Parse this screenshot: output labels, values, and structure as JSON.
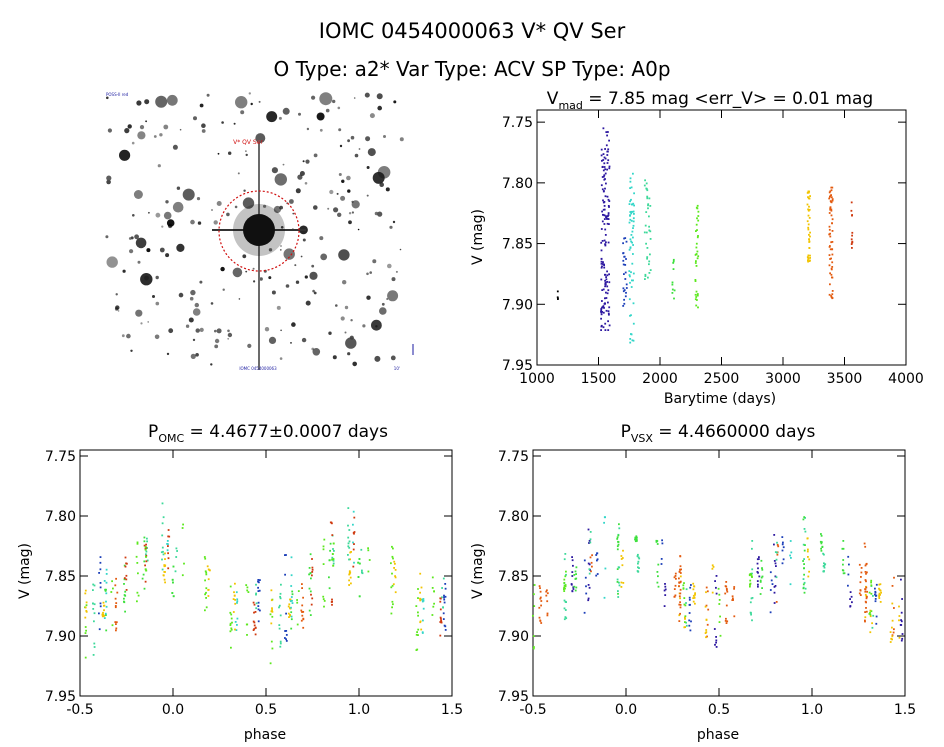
{
  "header": {
    "title": "IOMC 0454000063    V* QV Ser",
    "subtitle": "O Type: a2*  Var Type: ACV  SP Type: A0p"
  },
  "finder": {
    "star_label": "V* QV Ser",
    "corner_top_left": "POSS-II red",
    "corner_bottom_center": "IOMC 0454000063",
    "corner_bottom_right": "10'"
  },
  "chart_data": [
    {
      "id": "lightcurve",
      "type": "scatter",
      "title": "V_mad = 7.85 mag <err_V> = 0.01 mag",
      "title_parts": [
        "V",
        "mad",
        " = 7.85 mag <err_V> = 0.01 mag"
      ],
      "xlabel": "Barytime (days)",
      "ylabel": "V (mag)",
      "xlim": [
        1000,
        4000
      ],
      "ylim": [
        7.95,
        7.74
      ],
      "y_inverted": true,
      "xticks": [
        1000,
        1500,
        2000,
        2500,
        3000,
        3500,
        4000
      ],
      "yticks": [
        7.75,
        7.8,
        7.85,
        7.9,
        7.95
      ],
      "clusters": [
        {
          "x": 1170,
          "width": 4,
          "ymin": 7.888,
          "ymax": 7.897,
          "n": 4,
          "color": "#000000"
        },
        {
          "x": 1555,
          "width": 70,
          "ymin": 7.755,
          "ymax": 7.922,
          "n": 150,
          "color": "#2d18a0"
        },
        {
          "x": 1715,
          "width": 30,
          "ymin": 7.845,
          "ymax": 7.905,
          "n": 25,
          "color": "#1c3fb8"
        },
        {
          "x": 1770,
          "width": 40,
          "ymin": 7.792,
          "ymax": 7.935,
          "n": 60,
          "color": "#33d6c8"
        },
        {
          "x": 1900,
          "width": 50,
          "ymin": 7.797,
          "ymax": 7.885,
          "n": 35,
          "color": "#3dd99a"
        },
        {
          "x": 2110,
          "width": 20,
          "ymin": 7.862,
          "ymax": 7.9,
          "n": 10,
          "color": "#3de03d"
        },
        {
          "x": 2300,
          "width": 25,
          "ymin": 7.818,
          "ymax": 7.905,
          "n": 35,
          "color": "#5ce81e"
        },
        {
          "x": 3210,
          "width": 25,
          "ymin": 7.804,
          "ymax": 7.866,
          "n": 40,
          "color": "#f2c400"
        },
        {
          "x": 3390,
          "width": 30,
          "ymin": 7.803,
          "ymax": 7.897,
          "n": 60,
          "color": "#e35b10"
        },
        {
          "x": 3560,
          "width": 8,
          "ymin": 7.812,
          "ymax": 7.858,
          "n": 12,
          "color": "#cf3a10"
        }
      ]
    },
    {
      "id": "phase_omc",
      "type": "scatter",
      "title": "P_OMC = 4.4677±0.0007 days",
      "title_parts": [
        "P",
        "OMC",
        " = 4.4677±0.0007 days"
      ],
      "xlabel": "phase",
      "ylabel": "V (mag)",
      "xlim": [
        -0.5,
        1.5
      ],
      "ylim": [
        7.95,
        7.745
      ],
      "y_inverted": true,
      "xticks": [
        -0.5,
        0.0,
        0.5,
        1.0,
        1.5
      ],
      "yticks": [
        7.75,
        7.8,
        7.85,
        7.9,
        7.95
      ],
      "phase_shift": 0.0
    },
    {
      "id": "phase_vsx",
      "type": "scatter",
      "title": "P_VSX = 4.4660000 days",
      "title_parts": [
        "P",
        "VSX",
        " = 4.4660000 days"
      ],
      "xlabel": "phase",
      "ylabel": "V (mag)",
      "xlim": [
        -0.5,
        1.5
      ],
      "ylim": [
        7.95,
        7.745
      ],
      "y_inverted": true,
      "xticks": [
        -0.5,
        0.0,
        0.5,
        1.0,
        1.5
      ],
      "yticks": [
        7.75,
        7.8,
        7.85,
        7.9,
        7.95
      ],
      "phase_shift": 0.03
    }
  ],
  "colors": {
    "axes": "#000000",
    "finder_circle": "#d01010",
    "finder_label": "#d01010",
    "corner_text": "#1a1aa0",
    "palette": [
      "#2d18a0",
      "#1c3fb8",
      "#33d6c8",
      "#3dd99a",
      "#3de03d",
      "#5ce81e",
      "#f2c400",
      "#e35b10",
      "#cf3a10"
    ]
  }
}
